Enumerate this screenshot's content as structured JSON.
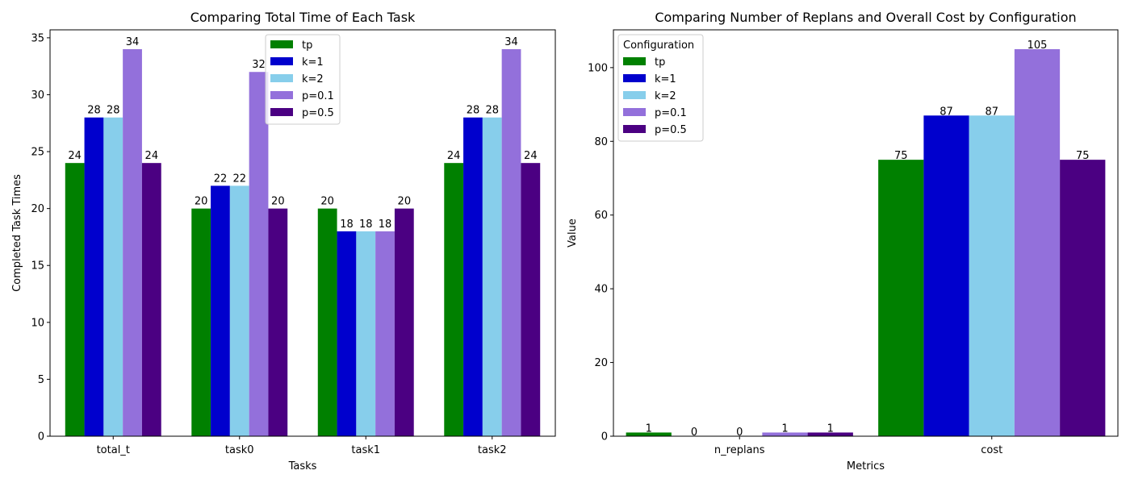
{
  "chart_data": [
    {
      "type": "bar",
      "title": "Comparing Total Time of Each Task",
      "xlabel": "Tasks",
      "ylabel": "Completed Task Times",
      "categories": [
        "total_t",
        "task0",
        "task1",
        "task2"
      ],
      "ylim": [
        0,
        35.7
      ],
      "yticks": [
        0,
        5,
        10,
        15,
        20,
        25,
        30,
        35
      ],
      "legend_title": "",
      "legend_position": "top-center",
      "series": [
        {
          "name": "tp",
          "color": "#008000",
          "values": [
            24,
            20,
            20,
            24
          ]
        },
        {
          "name": "k=1",
          "color": "#0000cd",
          "values": [
            28,
            22,
            18,
            28
          ]
        },
        {
          "name": "k=2",
          "color": "#87ceeb",
          "values": [
            28,
            22,
            18,
            28
          ]
        },
        {
          "name": "p=0.1",
          "color": "#9370db",
          "values": [
            34,
            32,
            18,
            34
          ]
        },
        {
          "name": "p=0.5",
          "color": "#4b0082",
          "values": [
            24,
            20,
            20,
            24
          ]
        }
      ]
    },
    {
      "type": "bar",
      "title": "Comparing Number of Replans and Overall Cost by Configuration",
      "xlabel": "Metrics",
      "ylabel": "Value",
      "categories": [
        "n_replans",
        "cost"
      ],
      "ylim": [
        0,
        110.25
      ],
      "yticks": [
        0,
        20,
        40,
        60,
        80,
        100
      ],
      "legend_title": "Configuration",
      "legend_position": "top-left",
      "series": [
        {
          "name": "tp",
          "color": "#008000",
          "values": [
            1,
            75
          ]
        },
        {
          "name": "k=1",
          "color": "#0000cd",
          "values": [
            0,
            87
          ]
        },
        {
          "name": "k=2",
          "color": "#87ceeb",
          "values": [
            0,
            87
          ]
        },
        {
          "name": "p=0.1",
          "color": "#9370db",
          "values": [
            1,
            105
          ]
        },
        {
          "name": "p=0.5",
          "color": "#4b0082",
          "values": [
            1,
            75
          ]
        }
      ]
    }
  ]
}
